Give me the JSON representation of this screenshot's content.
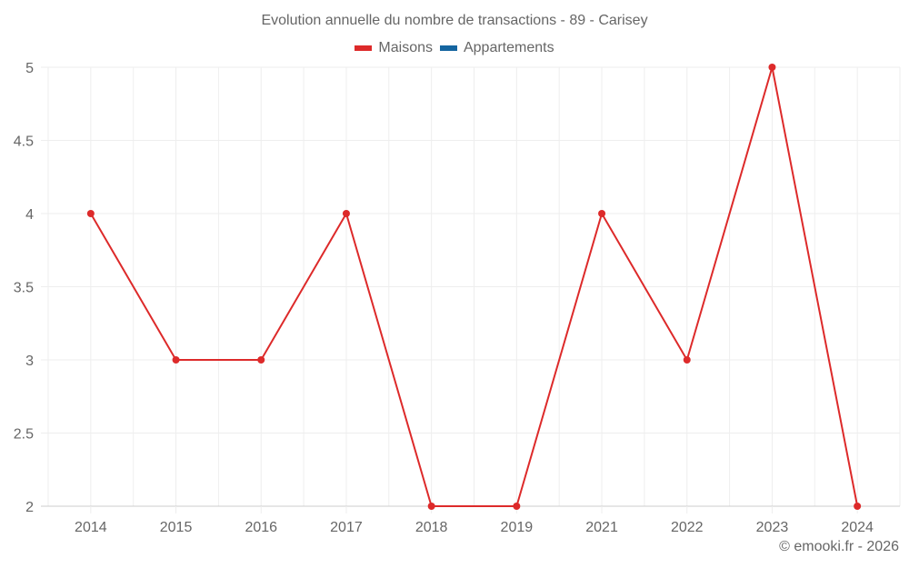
{
  "chart_data": {
    "type": "line",
    "title": "Evolution annuelle du nombre de transactions - 89 - Carisey",
    "xlabel": "",
    "ylabel": "",
    "categories": [
      "2014",
      "2015",
      "2016",
      "2017",
      "2018",
      "2019",
      "2021",
      "2022",
      "2023",
      "2024"
    ],
    "series": [
      {
        "name": "Maisons",
        "color": "#dd2a2a",
        "values": [
          4,
          3,
          3,
          4,
          2,
          2,
          4,
          3,
          5,
          2
        ]
      },
      {
        "name": "Appartements",
        "color": "#1565a0",
        "values": []
      }
    ],
    "ylim": [
      2,
      5
    ],
    "yticks": [
      "2",
      "2.5",
      "3",
      "3.5",
      "4",
      "4.5",
      "5"
    ],
    "grid": true,
    "legend_position": "top"
  },
  "legend": {
    "items": [
      {
        "label": "Maisons",
        "color": "#dd2a2a"
      },
      {
        "label": "Appartements",
        "color": "#1565a0"
      }
    ]
  },
  "credit": "© emooki.fr - 2026"
}
